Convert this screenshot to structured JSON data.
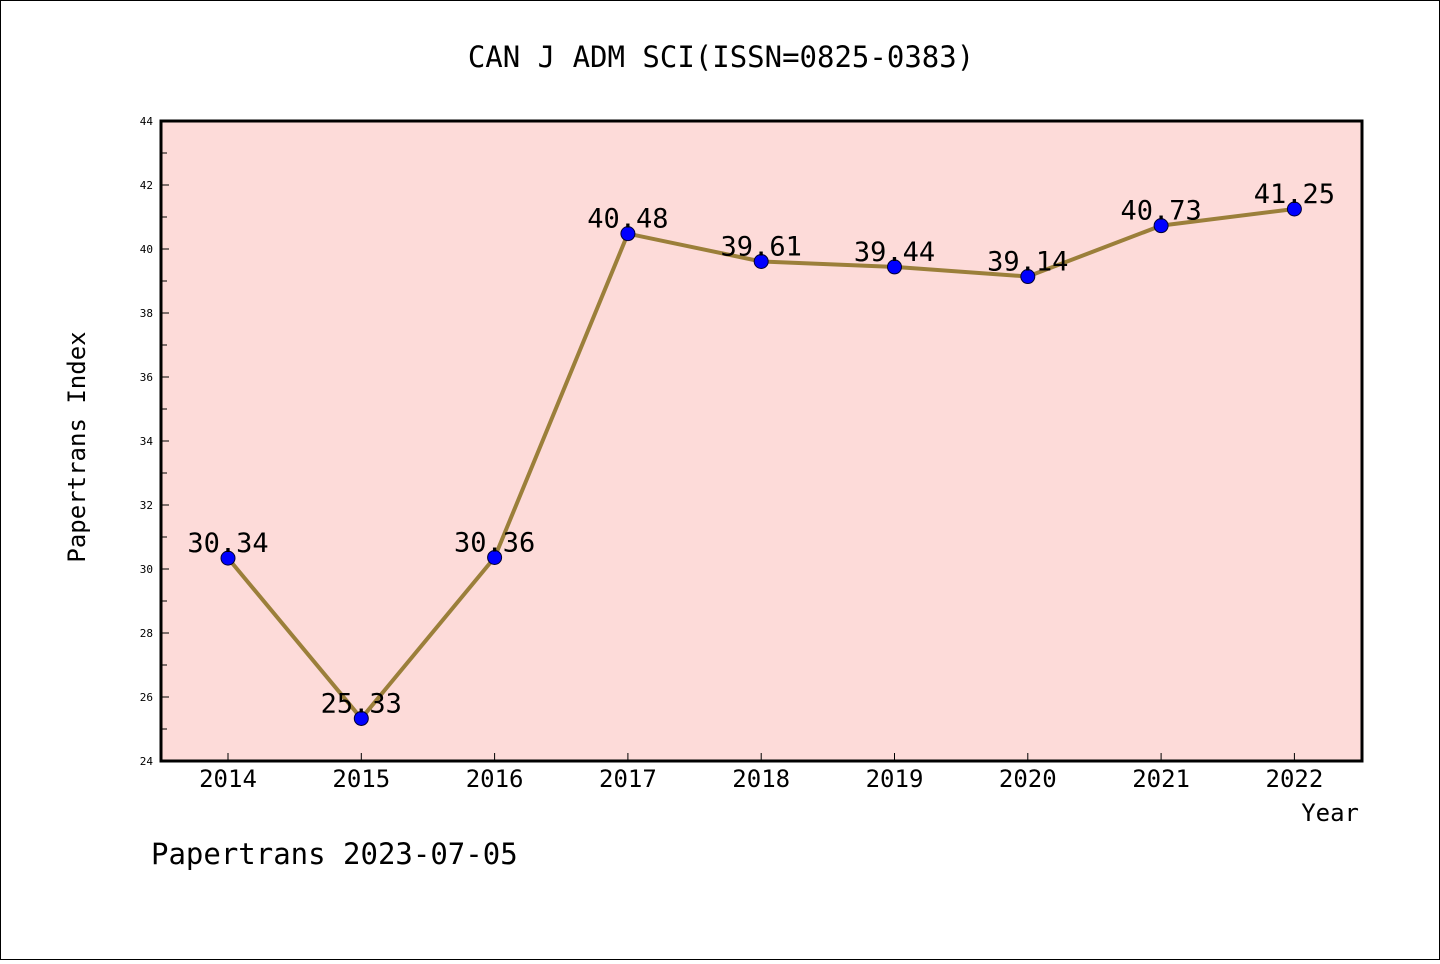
{
  "chart_data": {
    "type": "line",
    "title": "CAN J ADM SCI(ISSN=0825-0383)",
    "xlabel": "Year",
    "ylabel": "Papertrans Index",
    "x": [
      "2014",
      "2015",
      "2016",
      "2017",
      "2018",
      "2019",
      "2020",
      "2021",
      "2022"
    ],
    "series": [
      {
        "values": [
          30.34,
          25.33,
          30.36,
          40.48,
          39.61,
          39.44,
          39.14,
          40.73,
          41.25
        ],
        "labels": [
          "30.34",
          "25.33",
          "30.36",
          "40.48",
          "39.61",
          "39.44",
          "39.14",
          "40.73",
          "41.25"
        ]
      }
    ],
    "ylim": [
      24,
      44
    ],
    "yticks": [
      "24",
      "26",
      "28",
      "30",
      "32",
      "34",
      "36",
      "38",
      "40",
      "42",
      "44"
    ],
    "grid": false,
    "colors": {
      "plot_background": "#fddbd9",
      "line": "#9b7f3a",
      "marker": "#0000ff"
    }
  },
  "footer": "Papertrans 2023-07-05"
}
